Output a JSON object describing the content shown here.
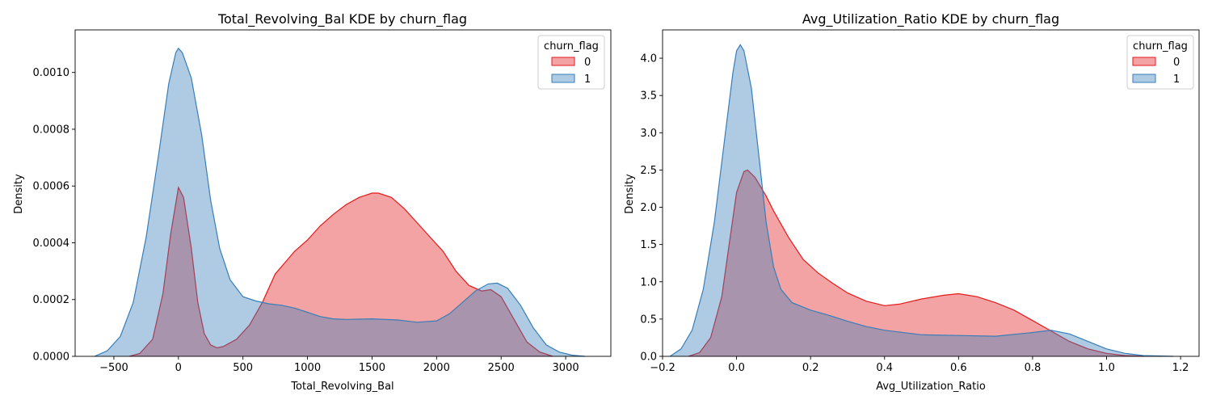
{
  "chart_data": [
    {
      "type": "area",
      "title": "Total_Revolving_Bal KDE by churn_flag",
      "xlabel": "Total_Revolving_Bal",
      "ylabel": "Density",
      "xlim": [
        -800,
        3350
      ],
      "ylim": [
        0,
        0.00115
      ],
      "xticks": [
        -500,
        0,
        500,
        1000,
        1500,
        2000,
        2500,
        3000
      ],
      "xtick_labels": [
        "−500",
        "0",
        "500",
        "1000",
        "1500",
        "2000",
        "2500",
        "3000"
      ],
      "yticks": [
        0,
        0.0002,
        0.0004,
        0.0006,
        0.0008,
        0.001
      ],
      "ytick_labels": [
        "0.0000",
        "0.0002",
        "0.0004",
        "0.0006",
        "0.0008",
        "0.0010"
      ],
      "legend": {
        "title": "churn_flag",
        "placement": "top-right"
      },
      "series": [
        {
          "name": "0",
          "color": "#e41a1c",
          "points": [
            [
              -380,
              0
            ],
            [
              -300,
              1e-05
            ],
            [
              -200,
              6e-05
            ],
            [
              -120,
              0.00022
            ],
            [
              -60,
              0.00043
            ],
            [
              0,
              0.000595
            ],
            [
              40,
              0.00056
            ],
            [
              100,
              0.00038
            ],
            [
              150,
              0.00019
            ],
            [
              200,
              8e-05
            ],
            [
              250,
              4e-05
            ],
            [
              300,
              3e-05
            ],
            [
              350,
              3.5e-05
            ],
            [
              450,
              6e-05
            ],
            [
              550,
              0.00011
            ],
            [
              650,
              0.00019
            ],
            [
              750,
              0.00029
            ],
            [
              900,
              0.00037
            ],
            [
              1000,
              0.00041
            ],
            [
              1100,
              0.00046
            ],
            [
              1200,
              0.0005
            ],
            [
              1300,
              0.000535
            ],
            [
              1400,
              0.00056
            ],
            [
              1500,
              0.000575
            ],
            [
              1550,
              0.000575
            ],
            [
              1650,
              0.00056
            ],
            [
              1750,
              0.00052
            ],
            [
              1850,
              0.00047
            ],
            [
              1950,
              0.00042
            ],
            [
              2050,
              0.00037
            ],
            [
              2150,
              0.0003
            ],
            [
              2250,
              0.00025
            ],
            [
              2350,
              0.00023
            ],
            [
              2420,
              0.000235
            ],
            [
              2500,
              0.00021
            ],
            [
              2600,
              0.00013
            ],
            [
              2700,
              5e-05
            ],
            [
              2800,
              1.5e-05
            ],
            [
              2900,
              0
            ]
          ]
        },
        {
          "name": "1",
          "color": "#377eb8",
          "points": [
            [
              -650,
              0
            ],
            [
              -550,
              2e-05
            ],
            [
              -450,
              7e-05
            ],
            [
              -350,
              0.00019
            ],
            [
              -250,
              0.00042
            ],
            [
              -150,
              0.00072
            ],
            [
              -75,
              0.00096
            ],
            [
              -20,
              0.00107
            ],
            [
              0,
              0.001085
            ],
            [
              30,
              0.00107
            ],
            [
              100,
              0.00098
            ],
            [
              180,
              0.00078
            ],
            [
              250,
              0.00055
            ],
            [
              320,
              0.00038
            ],
            [
              400,
              0.00027
            ],
            [
              500,
              0.00021
            ],
            [
              600,
              0.000195
            ],
            [
              700,
              0.000185
            ],
            [
              800,
              0.00018
            ],
            [
              900,
              0.00017
            ],
            [
              1000,
              0.000155
            ],
            [
              1100,
              0.00014
            ],
            [
              1200,
              0.000132
            ],
            [
              1300,
              0.00013
            ],
            [
              1500,
              0.000132
            ],
            [
              1700,
              0.000128
            ],
            [
              1850,
              0.00012
            ],
            [
              2000,
              0.000125
            ],
            [
              2100,
              0.00015
            ],
            [
              2200,
              0.00019
            ],
            [
              2300,
              0.00023
            ],
            [
              2400,
              0.000255
            ],
            [
              2470,
              0.000258
            ],
            [
              2550,
              0.00024
            ],
            [
              2650,
              0.00018
            ],
            [
              2750,
              0.0001
            ],
            [
              2850,
              4e-05
            ],
            [
              2950,
              1.5e-05
            ],
            [
              3050,
              4e-06
            ],
            [
              3150,
              0
            ]
          ]
        }
      ]
    },
    {
      "type": "area",
      "title": "Avg_Utilization_Ratio KDE by churn_flag",
      "xlabel": "Avg_Utilization_Ratio",
      "ylabel": "Density",
      "xlim": [
        -0.2,
        1.25
      ],
      "ylim": [
        0,
        4.38
      ],
      "xticks": [
        -0.2,
        0,
        0.2,
        0.4,
        0.6,
        0.8,
        1.0,
        1.2
      ],
      "xtick_labels": [
        "−0.2",
        "0.0",
        "0.2",
        "0.4",
        "0.6",
        "0.8",
        "1.0",
        "1.2"
      ],
      "yticks": [
        0,
        0.5,
        1.0,
        1.5,
        2.0,
        2.5,
        3.0,
        3.5,
        4.0
      ],
      "ytick_labels": [
        "0.0",
        "0.5",
        "1.0",
        "1.5",
        "2.0",
        "2.5",
        "3.0",
        "3.5",
        "4.0"
      ],
      "legend": {
        "title": "churn_flag",
        "placement": "top-right"
      },
      "series": [
        {
          "name": "0",
          "color": "#e41a1c",
          "points": [
            [
              -0.13,
              0
            ],
            [
              -0.1,
              0.05
            ],
            [
              -0.07,
              0.25
            ],
            [
              -0.04,
              0.8
            ],
            [
              -0.02,
              1.5
            ],
            [
              0,
              2.2
            ],
            [
              0.02,
              2.48
            ],
            [
              0.03,
              2.5
            ],
            [
              0.05,
              2.4
            ],
            [
              0.08,
              2.15
            ],
            [
              0.1,
              1.95
            ],
            [
              0.14,
              1.6
            ],
            [
              0.18,
              1.3
            ],
            [
              0.22,
              1.12
            ],
            [
              0.26,
              0.98
            ],
            [
              0.3,
              0.85
            ],
            [
              0.35,
              0.74
            ],
            [
              0.4,
              0.68
            ],
            [
              0.44,
              0.7
            ],
            [
              0.5,
              0.77
            ],
            [
              0.56,
              0.82
            ],
            [
              0.6,
              0.84
            ],
            [
              0.65,
              0.8
            ],
            [
              0.7,
              0.72
            ],
            [
              0.75,
              0.62
            ],
            [
              0.8,
              0.48
            ],
            [
              0.85,
              0.34
            ],
            [
              0.9,
              0.2
            ],
            [
              0.95,
              0.1
            ],
            [
              1.0,
              0.04
            ],
            [
              1.05,
              0.01
            ],
            [
              1.1,
              0
            ]
          ]
        },
        {
          "name": "1",
          "color": "#377eb8",
          "points": [
            [
              -0.18,
              0
            ],
            [
              -0.15,
              0.1
            ],
            [
              -0.12,
              0.35
            ],
            [
              -0.09,
              0.9
            ],
            [
              -0.06,
              1.8
            ],
            [
              -0.03,
              3.0
            ],
            [
              -0.01,
              3.8
            ],
            [
              0.0,
              4.1
            ],
            [
              0.01,
              4.18
            ],
            [
              0.02,
              4.1
            ],
            [
              0.04,
              3.6
            ],
            [
              0.06,
              2.7
            ],
            [
              0.08,
              1.8
            ],
            [
              0.1,
              1.2
            ],
            [
              0.12,
              0.9
            ],
            [
              0.15,
              0.72
            ],
            [
              0.2,
              0.62
            ],
            [
              0.25,
              0.55
            ],
            [
              0.3,
              0.47
            ],
            [
              0.35,
              0.4
            ],
            [
              0.4,
              0.35
            ],
            [
              0.5,
              0.29
            ],
            [
              0.6,
              0.28
            ],
            [
              0.7,
              0.27
            ],
            [
              0.8,
              0.32
            ],
            [
              0.85,
              0.35
            ],
            [
              0.9,
              0.3
            ],
            [
              0.95,
              0.2
            ],
            [
              1.0,
              0.1
            ],
            [
              1.05,
              0.04
            ],
            [
              1.1,
              0.01
            ],
            [
              1.18,
              0
            ]
          ]
        }
      ]
    }
  ]
}
